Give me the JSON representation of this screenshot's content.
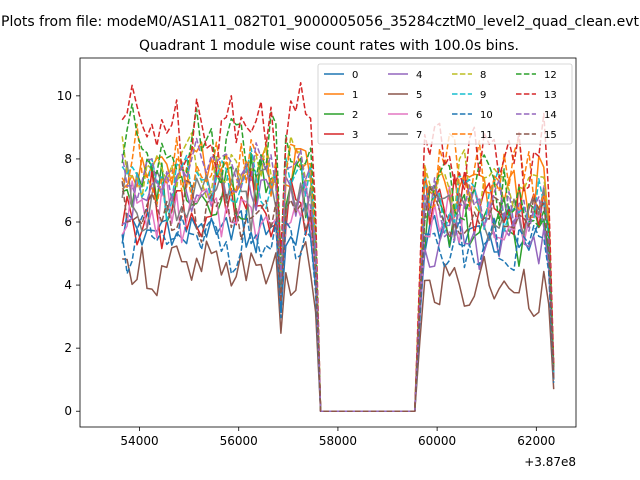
{
  "figure": {
    "suptitle": "Plots from file: modeM0/AS1A11_082T01_9000005056_35284cztM0_level2_quad_clean.evt",
    "offset_label": "+3.87e8"
  },
  "chart_data": {
    "type": "line",
    "title": "Quadrant 1 module wise count rates with 100.0s bins.",
    "xlabel": "",
    "ylabel": "",
    "x_offset": 387000000,
    "xlim": [
      52800,
      62800
    ],
    "ylim": [
      -0.5,
      11.2
    ],
    "x_ticks": [
      54000,
      56000,
      58000,
      60000,
      62000
    ],
    "y_ticks": [
      0,
      2,
      4,
      6,
      8,
      10
    ],
    "x_tick_labels": [
      "54000",
      "56000",
      "58000",
      "60000",
      "62000"
    ],
    "y_tick_labels": [
      "0",
      "2",
      "4",
      "6",
      "8",
      "10"
    ],
    "grid": false,
    "legend_position": "top-right",
    "legend_columns": 4,
    "segments": [
      {
        "x_start": 53650,
        "x_end": 57550,
        "step": 100
      },
      {
        "x_start": 57650,
        "x_end": 59550,
        "step": 100,
        "zero": true
      },
      {
        "x_start": 59650,
        "x_end": 62350,
        "step": 100
      }
    ],
    "series": [
      {
        "name": "0",
        "color": "#1f77b4",
        "dash": false,
        "level": 5.7,
        "level2": 5.6,
        "amp": 0.6,
        "endval": 1.0
      },
      {
        "name": "1",
        "color": "#ff7f0e",
        "dash": false,
        "level": 7.6,
        "level2": 6.9,
        "amp": 0.9,
        "endval": 1.2
      },
      {
        "name": "2",
        "color": "#2ca02c",
        "dash": false,
        "level": 7.1,
        "level2": 5.9,
        "amp": 1.0,
        "endval": 1.1
      },
      {
        "name": "3",
        "color": "#d62728",
        "dash": false,
        "level": 6.4,
        "level2": 6.6,
        "amp": 1.0,
        "endval": 1.3
      },
      {
        "name": "4",
        "color": "#9467bd",
        "dash": false,
        "level": 6.9,
        "level2": 5.4,
        "amp": 0.8,
        "endval": 1.0
      },
      {
        "name": "5",
        "color": "#8c564b",
        "dash": false,
        "level": 4.5,
        "level2": 4.0,
        "amp": 0.7,
        "endval": 0.7
      },
      {
        "name": "6",
        "color": "#e377c2",
        "dash": false,
        "level": 6.3,
        "level2": 6.2,
        "amp": 0.8,
        "endval": 1.1
      },
      {
        "name": "7",
        "color": "#7f7f7f",
        "dash": false,
        "level": 6.8,
        "level2": 6.5,
        "amp": 0.8,
        "endval": 1.0
      },
      {
        "name": "8",
        "color": "#bcbd22",
        "dash": true,
        "level": 7.7,
        "level2": 7.2,
        "amp": 0.8,
        "endval": 1.3
      },
      {
        "name": "9",
        "color": "#17becf",
        "dash": true,
        "level": 7.2,
        "level2": 6.5,
        "amp": 0.9,
        "endval": 1.2
      },
      {
        "name": "10",
        "color": "#1f77b4",
        "dash": true,
        "level": 5.4,
        "level2": 5.2,
        "amp": 0.7,
        "endval": 0.9
      },
      {
        "name": "11",
        "color": "#ff7f0e",
        "dash": true,
        "level": 7.8,
        "level2": 7.5,
        "amp": 1.0,
        "endval": 1.3
      },
      {
        "name": "12",
        "color": "#2ca02c",
        "dash": true,
        "level": 8.5,
        "level2": 6.9,
        "amp": 1.0,
        "endval": 1.4
      },
      {
        "name": "13",
        "color": "#d62728",
        "dash": true,
        "level": 9.1,
        "level2": 8.1,
        "amp": 1.2,
        "endval": 1.5
      },
      {
        "name": "14",
        "color": "#9467bd",
        "dash": true,
        "level": 7.6,
        "level2": 6.4,
        "amp": 0.9,
        "endval": 1.2
      },
      {
        "name": "15",
        "color": "#8c564b",
        "dash": true,
        "level": 6.3,
        "level2": 6.0,
        "amp": 0.8,
        "endval": 1.0
      }
    ]
  }
}
